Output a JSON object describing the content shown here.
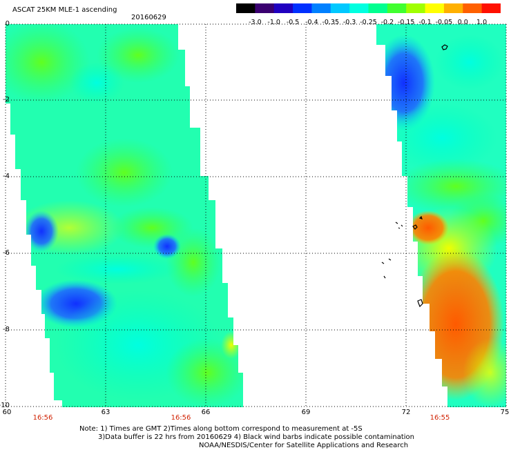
{
  "header": {
    "title": "ASCAT 25KM MLE-1 ascending",
    "date": "20160629"
  },
  "colorbar": {
    "labels": [
      "-3.0",
      "-1.0",
      "-0.5",
      "-0.4",
      "-0.35",
      "-0.3",
      "-0.25",
      "-0.2",
      "-0.15",
      "-0.1",
      "-0.05",
      "0.0",
      "1.0"
    ],
    "colors": [
      "#000000",
      "#3a0070",
      "#2000c0",
      "#0030ff",
      "#0080ff",
      "#00c8ff",
      "#00ffe0",
      "#00ff90",
      "#40ff30",
      "#a0ff00",
      "#ffff00",
      "#ffb000",
      "#ff6000",
      "#ff1000"
    ]
  },
  "map": {
    "lat_labels": [
      "0",
      "-2",
      "-4",
      "-6",
      "-8",
      "-10"
    ],
    "lon_labels": [
      "60",
      "63",
      "66",
      "69",
      "72",
      "75"
    ],
    "time_labels": [
      "16:56",
      "16:56",
      "16:55"
    ]
  },
  "notes": {
    "line1": "Note: 1) Times are GMT 2)Times along bottom correspond to measurement at -5S",
    "line2": "3)Data buffer is 22 hrs from 20160629 4) Black wind barbs indicate possible contamination",
    "line3": "NOAA/NESDIS/Center for Satellite Applications and Research"
  }
}
